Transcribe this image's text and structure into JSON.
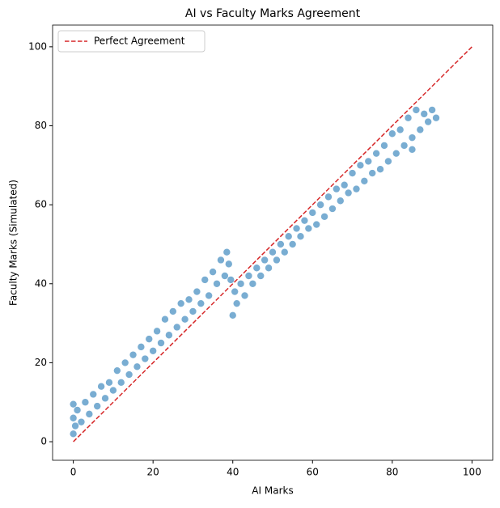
{
  "chart_data": {
    "type": "scatter",
    "title": "AI vs Faculty Marks Agreement",
    "xlabel": "AI Marks",
    "ylabel": "Faculty Marks (Simulated)",
    "xlim": [
      -5.2,
      105.2
    ],
    "ylim": [
      -4.7,
      105.5
    ],
    "xticks": [
      0,
      20,
      40,
      60,
      80,
      100
    ],
    "yticks": [
      0,
      20,
      40,
      60,
      80,
      100
    ],
    "grid": false,
    "legend": "upper left",
    "series": [
      {
        "type": "scatter",
        "color": "#1f77b4",
        "x": [
          0,
          0,
          0,
          0.5,
          1,
          2,
          3,
          4,
          5,
          6,
          7,
          8,
          9,
          10,
          11,
          12,
          13,
          14,
          15,
          16,
          17,
          18,
          19,
          20,
          21,
          22,
          23,
          24,
          25,
          26,
          27,
          28,
          29,
          30,
          31,
          32,
          33,
          34,
          35,
          36,
          37,
          38,
          38.5,
          39,
          39.5,
          40,
          40.5,
          41,
          42,
          43,
          44,
          45,
          46,
          47,
          48,
          49,
          50,
          51,
          52,
          53,
          54,
          55,
          56,
          57,
          58,
          59,
          60,
          61,
          62,
          63,
          64,
          65,
          66,
          67,
          68,
          69,
          70,
          71,
          72,
          73,
          74,
          75,
          76,
          77,
          78,
          79,
          80,
          81,
          82,
          83,
          84,
          85,
          86,
          87,
          88,
          89,
          90,
          91,
          85
        ],
        "values": [
          2,
          6,
          9.5,
          4,
          8,
          5,
          10,
          7,
          12,
          9,
          14,
          11,
          15,
          13,
          18,
          15,
          20,
          17,
          22,
          19,
          24,
          21,
          26,
          23,
          28,
          25,
          31,
          27,
          33,
          29,
          35,
          31,
          36,
          33,
          38,
          35,
          41,
          37,
          43,
          40,
          46,
          42,
          48,
          45,
          41,
          32,
          38,
          35,
          40,
          37,
          42,
          40,
          44,
          42,
          46,
          44,
          48,
          46,
          50,
          48,
          52,
          50,
          54,
          52,
          56,
          54,
          58,
          55,
          60,
          57,
          62,
          59,
          64,
          61,
          65,
          63,
          68,
          64,
          70,
          66,
          71,
          68,
          73,
          69,
          75,
          71,
          78,
          73,
          79,
          75,
          82,
          77,
          84,
          79,
          83,
          81,
          84,
          82,
          74
        ]
      },
      {
        "type": "line",
        "name": "Perfect Agreement",
        "color": "#d62728",
        "dashed": true,
        "x": [
          0,
          100
        ],
        "values": [
          0,
          100
        ]
      }
    ]
  }
}
